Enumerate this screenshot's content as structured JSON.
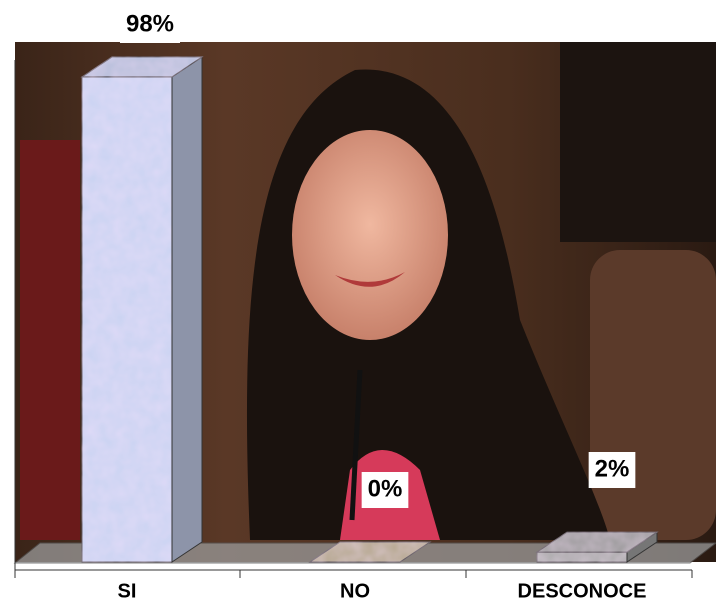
{
  "chart_data": {
    "type": "bar3d",
    "categories": [
      "SI",
      "NO",
      "DESCONOCE"
    ],
    "values": [
      98,
      0,
      2
    ],
    "value_labels": [
      "98%",
      "0%",
      "2%"
    ],
    "colors": [
      "#c9d3f2",
      "#c8b89a",
      "#a9a9a9"
    ]
  }
}
